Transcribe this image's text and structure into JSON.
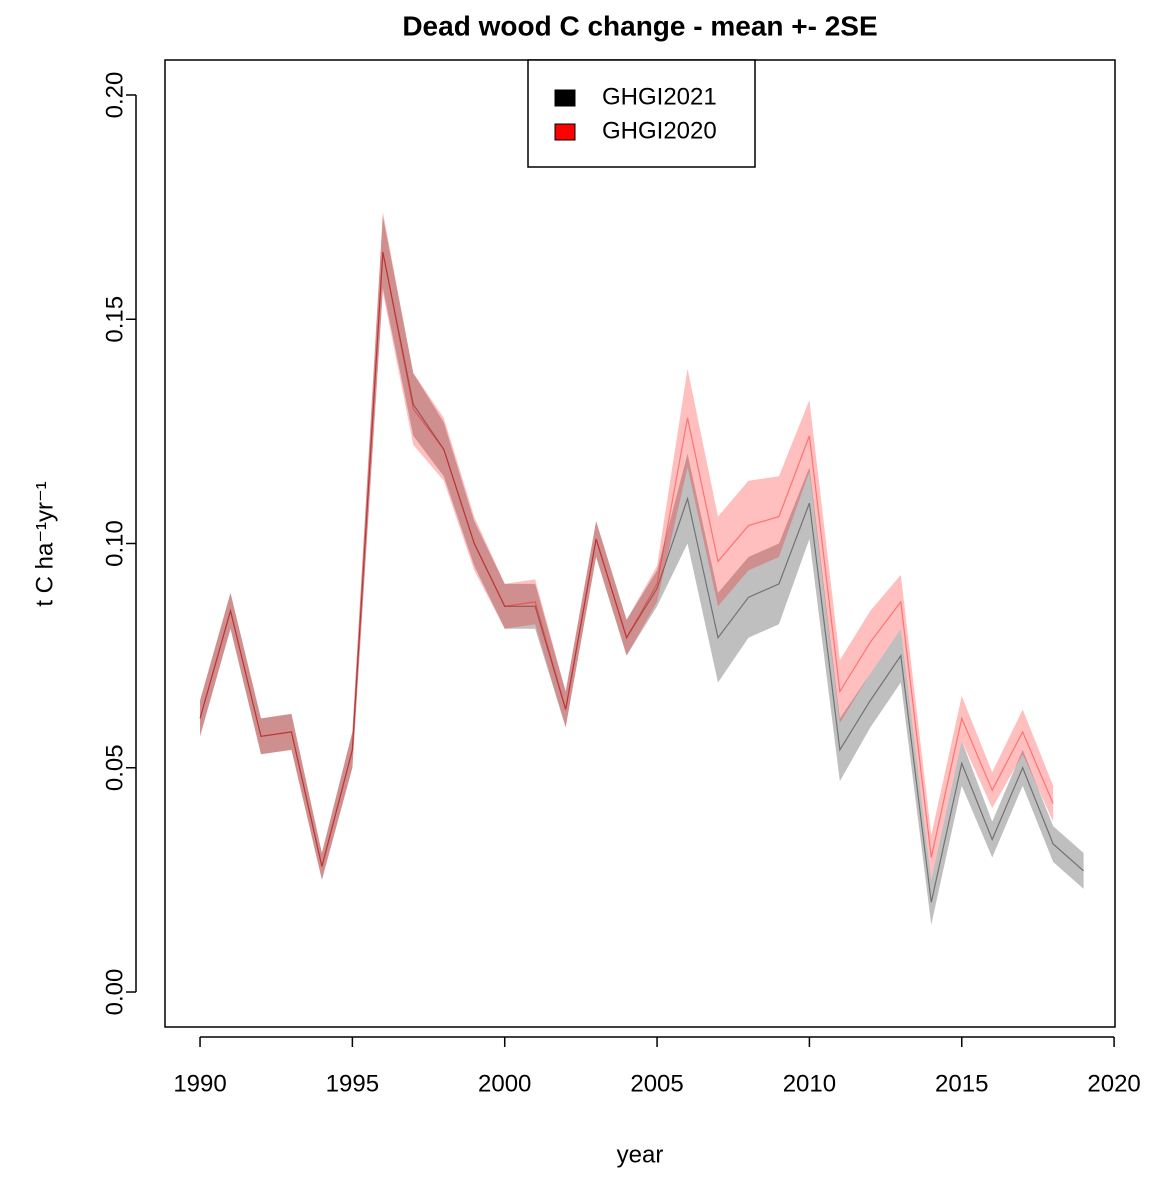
{
  "chart_data": {
    "type": "band-line",
    "title": "Dead wood C change - mean +- 2SE",
    "x_label": "year",
    "y_label": "t C ha⁻¹yr⁻¹",
    "xlim": [
      1988.85,
      2020.03
    ],
    "xticks": [
      1990,
      1995,
      2000,
      2005,
      2010,
      2015,
      2020
    ],
    "ylim": [
      -0.0078,
      0.2078
    ],
    "yticks": [
      {
        "value": 0,
        "label": "0.00"
      },
      {
        "value": 0.05,
        "label": "0.05"
      },
      {
        "value": 0.1,
        "label": "0.10"
      },
      {
        "value": 0.15,
        "label": "0.15"
      },
      {
        "value": 0.2,
        "label": "0.20"
      }
    ],
    "legend_position": "top",
    "series": [
      {
        "name": "GHGI2021",
        "color": "#000000",
        "x": [
          1990,
          1991,
          1992,
          1993,
          1994,
          1995,
          1996,
          1997,
          1998,
          1999,
          2000,
          2001,
          2002,
          2003,
          2004,
          2005,
          2006,
          2007,
          2008,
          2009,
          2010,
          2011,
          2012,
          2013,
          2014,
          2015,
          2016,
          2017,
          2018,
          2019
        ],
        "values": [
          0.061,
          0.085,
          0.057,
          0.058,
          0.028,
          0.054,
          0.165,
          0.131,
          0.121,
          0.1,
          0.086,
          0.086,
          0.063,
          0.101,
          0.079,
          0.09,
          0.11,
          0.079,
          0.088,
          0.091,
          0.109,
          0.054,
          0.065,
          0.075,
          0.02,
          0.051,
          0.034,
          0.05,
          0.033,
          0.027
        ],
        "error": [
          0.004,
          0.004,
          0.004,
          0.004,
          0.003,
          0.004,
          0.008,
          0.007,
          0.006,
          0.005,
          0.005,
          0.005,
          0.004,
          0.004,
          0.004,
          0.004,
          0.01,
          0.01,
          0.009,
          0.009,
          0.008,
          0.007,
          0.006,
          0.006,
          0.005,
          0.005,
          0.004,
          0.004,
          0.004,
          0.004
        ]
      },
      {
        "name": "GHGI2020",
        "color": "#ff0000",
        "x": [
          1990,
          1991,
          1992,
          1993,
          1994,
          1995,
          1996,
          1997,
          1998,
          1999,
          2000,
          2001,
          2002,
          2003,
          2004,
          2005,
          2006,
          2007,
          2008,
          2009,
          2010,
          2011,
          2012,
          2013,
          2014,
          2015,
          2016,
          2017,
          2018
        ],
        "values": [
          0.061,
          0.085,
          0.057,
          0.058,
          0.028,
          0.054,
          0.165,
          0.13,
          0.121,
          0.1,
          0.086,
          0.087,
          0.063,
          0.101,
          0.079,
          0.091,
          0.128,
          0.096,
          0.104,
          0.106,
          0.124,
          0.067,
          0.078,
          0.087,
          0.03,
          0.061,
          0.045,
          0.058,
          0.042
        ],
        "error": [
          0.004,
          0.004,
          0.004,
          0.004,
          0.003,
          0.004,
          0.009,
          0.008,
          0.007,
          0.006,
          0.005,
          0.005,
          0.004,
          0.004,
          0.004,
          0.004,
          0.011,
          0.01,
          0.01,
          0.009,
          0.008,
          0.007,
          0.007,
          0.006,
          0.005,
          0.005,
          0.004,
          0.005,
          0.004
        ]
      }
    ]
  }
}
